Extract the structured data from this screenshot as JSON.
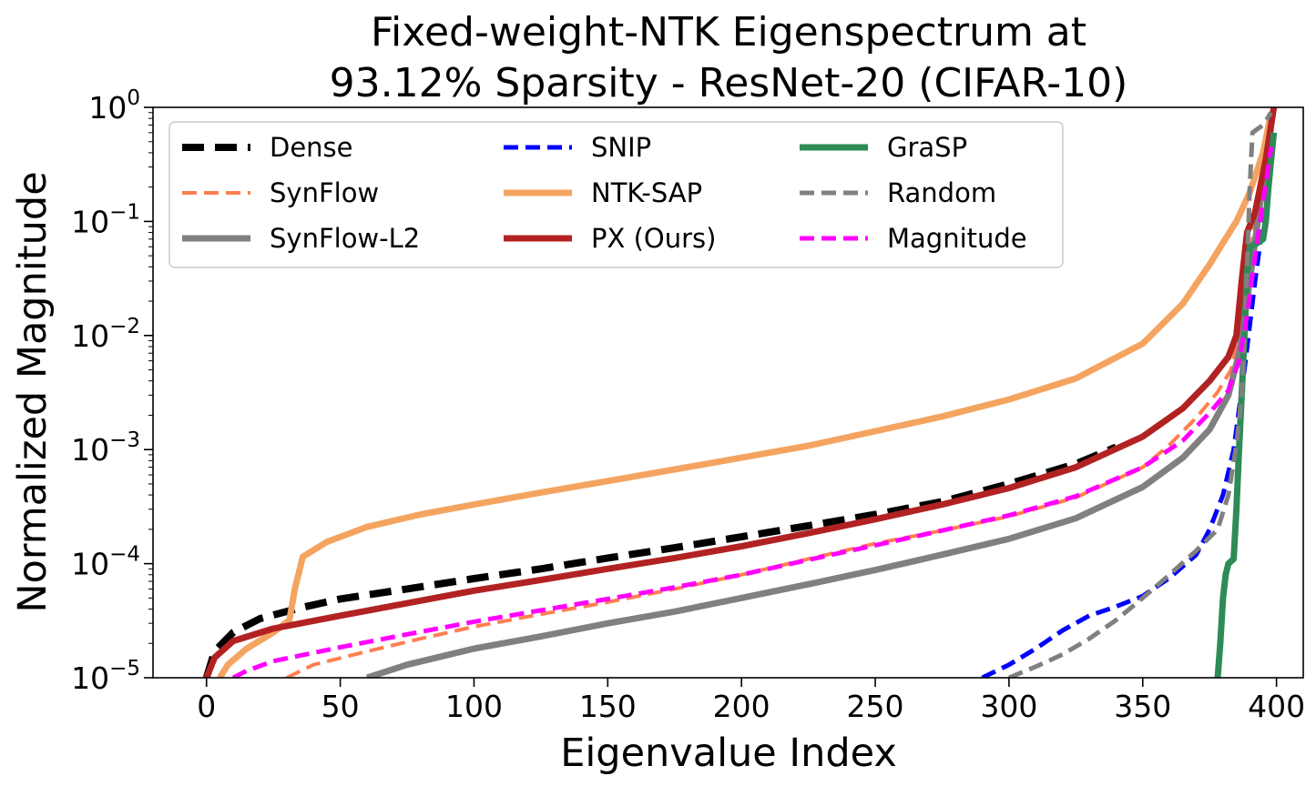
{
  "chart_data": {
    "type": "line",
    "title_lines": [
      "Fixed-weight-NTK Eigenspectrum at",
      "93.12% Sparsity - ResNet-20 (CIFAR-10)"
    ],
    "xlabel": "Eigenvalue Index",
    "ylabel": "Normalized Magnitude",
    "xlim": [
      -20,
      410
    ],
    "ylim": [
      1e-05,
      1
    ],
    "yscale": "log",
    "x_ticks": [
      0,
      50,
      100,
      150,
      200,
      250,
      300,
      350,
      400
    ],
    "y_ticks": [
      {
        "value": 1e-05,
        "base": "10",
        "exp": "−5"
      },
      {
        "value": 0.0001,
        "base": "10",
        "exp": "−4"
      },
      {
        "value": 0.001,
        "base": "10",
        "exp": "−3"
      },
      {
        "value": 0.01,
        "base": "10",
        "exp": "−2"
      },
      {
        "value": 0.1,
        "base": "10",
        "exp": "−1"
      },
      {
        "value": 1,
        "base": "10",
        "exp": "0"
      }
    ],
    "grid": false,
    "legend_position": "top-left",
    "series": [
      {
        "name": "Dense",
        "color": "#000000",
        "dash": "dashed-thick",
        "width": 8,
        "points": [
          [
            0,
            1e-05
          ],
          [
            3,
            1.7e-05
          ],
          [
            10,
            2.5e-05
          ],
          [
            20,
            3.3e-05
          ],
          [
            35,
            4.1e-05
          ],
          [
            50,
            4.9e-05
          ],
          [
            75,
            6e-05
          ],
          [
            100,
            7.4e-05
          ],
          [
            125,
            9e-05
          ],
          [
            150,
            0.000112
          ],
          [
            175,
            0.000138
          ],
          [
            200,
            0.000172
          ],
          [
            225,
            0.000215
          ],
          [
            250,
            0.00027
          ],
          [
            275,
            0.00035
          ],
          [
            300,
            0.0005
          ],
          [
            325,
            0.00075
          ],
          [
            340,
            0.00105
          ]
        ]
      },
      {
        "name": "SynFlow",
        "color": "#ff7f50",
        "dash": "dashed",
        "width": 4,
        "points": [
          [
            30,
            1e-05
          ],
          [
            40,
            1.3e-05
          ],
          [
            60,
            1.7e-05
          ],
          [
            80,
            2.2e-05
          ],
          [
            100,
            2.8e-05
          ],
          [
            125,
            3.6e-05
          ],
          [
            150,
            4.6e-05
          ],
          [
            175,
            6e-05
          ],
          [
            200,
            8e-05
          ],
          [
            225,
            0.00011
          ],
          [
            250,
            0.00015
          ],
          [
            275,
            0.000195
          ],
          [
            300,
            0.00026
          ],
          [
            325,
            0.00038
          ],
          [
            350,
            0.0007
          ],
          [
            360,
            0.0011
          ],
          [
            370,
            0.0019
          ],
          [
            378,
            0.0032
          ],
          [
            383,
            0.005
          ],
          [
            386,
            0.01
          ],
          [
            390,
            0.05
          ],
          [
            394,
            0.2
          ],
          [
            398,
            0.8
          ]
        ]
      },
      {
        "name": "SynFlow-L2",
        "color": "#808080",
        "dash": "solid",
        "width": 7,
        "points": [
          [
            60,
            1e-05
          ],
          [
            75,
            1.3e-05
          ],
          [
            100,
            1.8e-05
          ],
          [
            125,
            2.3e-05
          ],
          [
            150,
            3e-05
          ],
          [
            175,
            3.8e-05
          ],
          [
            200,
            5e-05
          ],
          [
            225,
            6.6e-05
          ],
          [
            250,
            8.8e-05
          ],
          [
            275,
            0.00012
          ],
          [
            300,
            0.000165
          ],
          [
            325,
            0.00025
          ],
          [
            350,
            0.00047
          ],
          [
            365,
            0.00085
          ],
          [
            375,
            0.0015
          ],
          [
            382,
            0.003
          ],
          [
            386,
            0.007
          ],
          [
            390,
            0.03
          ],
          [
            394,
            0.15
          ],
          [
            398,
            0.7
          ]
        ]
      },
      {
        "name": "SNIP",
        "color": "#0000ff",
        "dash": "dashed",
        "width": 5,
        "points": [
          [
            290,
            1e-05
          ],
          [
            300,
            1.3e-05
          ],
          [
            310,
            1.8e-05
          ],
          [
            320,
            2.6e-05
          ],
          [
            330,
            3.5e-05
          ],
          [
            340,
            4.2e-05
          ],
          [
            350,
            5.2e-05
          ],
          [
            360,
            7.5e-05
          ],
          [
            370,
            0.00012
          ],
          [
            375,
            0.0002
          ],
          [
            380,
            0.0004
          ],
          [
            384,
            0.001
          ],
          [
            388,
            0.005
          ],
          [
            392,
            0.03
          ],
          [
            395,
            0.1
          ],
          [
            398,
            0.5
          ]
        ]
      },
      {
        "name": "NTK-SAP",
        "color": "#f4a460",
        "dash": "solid",
        "width": 7,
        "points": [
          [
            5,
            1e-05
          ],
          [
            8,
            1.3e-05
          ],
          [
            15,
            1.8e-05
          ],
          [
            25,
            2.5e-05
          ],
          [
            31,
            3.2e-05
          ],
          [
            33,
            6e-05
          ],
          [
            36,
            0.000115
          ],
          [
            45,
            0.000155
          ],
          [
            60,
            0.00021
          ],
          [
            80,
            0.00027
          ],
          [
            100,
            0.00033
          ],
          [
            125,
            0.00042
          ],
          [
            150,
            0.00053
          ],
          [
            175,
            0.00067
          ],
          [
            200,
            0.00085
          ],
          [
            225,
            0.00108
          ],
          [
            250,
            0.00145
          ],
          [
            275,
            0.00195
          ],
          [
            300,
            0.00275
          ],
          [
            325,
            0.0042
          ],
          [
            350,
            0.0085
          ],
          [
            365,
            0.019
          ],
          [
            375,
            0.042
          ],
          [
            380,
            0.065
          ],
          [
            385,
            0.1
          ],
          [
            390,
            0.18
          ],
          [
            395,
            0.4
          ],
          [
            398,
            0.9
          ]
        ]
      },
      {
        "name": "PX (Ours)",
        "color": "#b22222",
        "dash": "solid",
        "width": 7,
        "points": [
          [
            0,
            1e-05
          ],
          [
            3,
            1.5e-05
          ],
          [
            10,
            2.1e-05
          ],
          [
            25,
            2.7e-05
          ],
          [
            50,
            3.5e-05
          ],
          [
            75,
            4.5e-05
          ],
          [
            100,
            5.8e-05
          ],
          [
            125,
            7.2e-05
          ],
          [
            150,
            9e-05
          ],
          [
            175,
            0.000112
          ],
          [
            200,
            0.000142
          ],
          [
            225,
            0.000185
          ],
          [
            250,
            0.000245
          ],
          [
            275,
            0.00033
          ],
          [
            300,
            0.00046
          ],
          [
            325,
            0.0007
          ],
          [
            350,
            0.0013
          ],
          [
            365,
            0.0023
          ],
          [
            375,
            0.004
          ],
          [
            382,
            0.0065
          ],
          [
            385,
            0.01
          ],
          [
            387,
            0.03
          ],
          [
            389,
            0.08
          ],
          [
            392,
            0.12
          ],
          [
            396,
            0.35
          ],
          [
            399,
            1
          ]
        ]
      },
      {
        "name": "GraSP",
        "color": "#2e8b57",
        "dash": "solid",
        "width": 7,
        "points": [
          [
            378,
            1e-05
          ],
          [
            379,
            2e-05
          ],
          [
            380,
            5e-05
          ],
          [
            381,
            8e-05
          ],
          [
            382,
            0.0001
          ],
          [
            384,
            0.00011
          ],
          [
            385,
            0.0003
          ],
          [
            386,
            0.001
          ],
          [
            387,
            0.003
          ],
          [
            388,
            0.01
          ],
          [
            389,
            0.035
          ],
          [
            390,
            0.06
          ],
          [
            393,
            0.065
          ],
          [
            395,
            0.07
          ],
          [
            396,
            0.1
          ],
          [
            397,
            0.2
          ],
          [
            399,
            0.6
          ]
        ]
      },
      {
        "name": "Random",
        "color": "#808080",
        "dash": "dashed",
        "width": 5,
        "points": [
          [
            300,
            1e-05
          ],
          [
            310,
            1.25e-05
          ],
          [
            320,
            1.6e-05
          ],
          [
            330,
            2.2e-05
          ],
          [
            340,
            3.2e-05
          ],
          [
            350,
            5e-05
          ],
          [
            360,
            8e-05
          ],
          [
            370,
            0.00013
          ],
          [
            378,
            0.0002
          ],
          [
            382,
            0.0004
          ],
          [
            385,
            0.0011
          ],
          [
            387,
            0.003
          ],
          [
            388,
            0.01
          ],
          [
            389,
            0.04
          ],
          [
            390,
            0.2
          ],
          [
            391,
            0.6
          ],
          [
            395,
            0.7
          ],
          [
            398,
            0.9
          ]
        ]
      },
      {
        "name": "Magnitude",
        "color": "#ff00ff",
        "dash": "dashed",
        "width": 5,
        "points": [
          [
            10,
            1e-05
          ],
          [
            15,
            1.15e-05
          ],
          [
            25,
            1.4e-05
          ],
          [
            50,
            1.85e-05
          ],
          [
            75,
            2.4e-05
          ],
          [
            100,
            3.1e-05
          ],
          [
            125,
            3.9e-05
          ],
          [
            150,
            4.9e-05
          ],
          [
            175,
            6.2e-05
          ],
          [
            200,
            8e-05
          ],
          [
            225,
            0.000108
          ],
          [
            250,
            0.000145
          ],
          [
            275,
            0.000195
          ],
          [
            300,
            0.000265
          ],
          [
            325,
            0.00039
          ],
          [
            350,
            0.0007
          ],
          [
            365,
            0.0012
          ],
          [
            375,
            0.0021
          ],
          [
            382,
            0.0033
          ],
          [
            386,
            0.006
          ],
          [
            389,
            0.015
          ],
          [
            392,
            0.05
          ],
          [
            395,
            0.15
          ],
          [
            398,
            0.45
          ]
        ]
      }
    ],
    "legend_order": [
      "Dense",
      "SNIP",
      "GraSP",
      "SynFlow",
      "NTK-SAP",
      "Random",
      "SynFlow-L2",
      "PX (Ours)",
      "Magnitude"
    ]
  }
}
